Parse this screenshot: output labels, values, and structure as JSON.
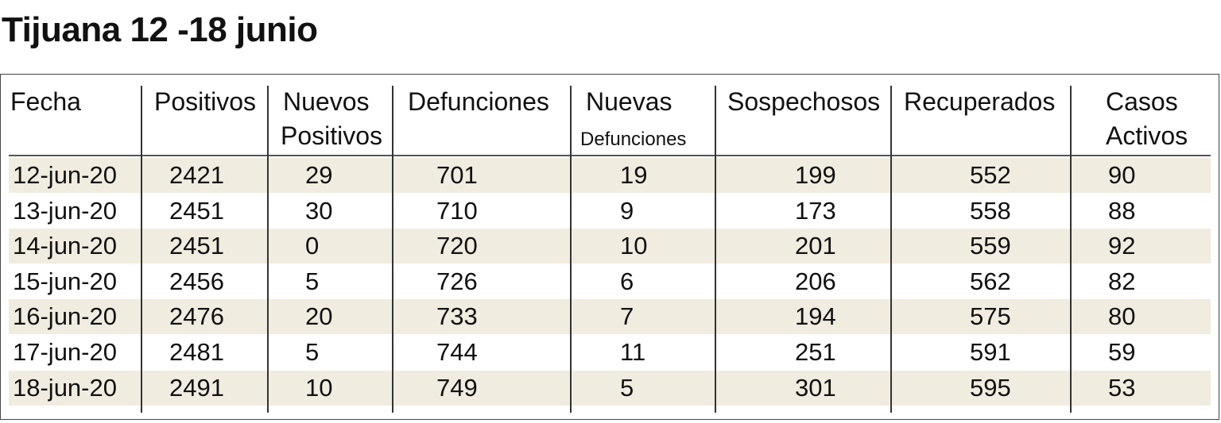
{
  "title": "Tijuana 12 -18 junio",
  "colors": {
    "row_shade": "#f1ece0",
    "rule": "#333333"
  },
  "chart_data": {
    "type": "table",
    "columns": [
      "Fecha",
      "Positivos",
      "Nuevos Positivos",
      "Defunciones",
      "Nuevas Defunciones",
      "Sospechosos",
      "Recuperados",
      "Casos Activos"
    ],
    "header": {
      "fecha": "Fecha",
      "positivos": "Positivos",
      "nuevos_positivos_1": "Nuevos",
      "nuevos_positivos_2": "Positivos",
      "defunciones": "Defunciones",
      "nuevas_defunciones_1": "Nuevas",
      "nuevas_defunciones_2": "Defunciones",
      "sospechosos": "Sospechosos",
      "recuperados": "Recuperados",
      "casos_activos_1": "Casos",
      "casos_activos_2": "Activos"
    },
    "rows": [
      [
        "12-jun-20",
        "2421",
        "29",
        "701",
        "19",
        "199",
        "552",
        "90"
      ],
      [
        "13-jun-20",
        "2451",
        "30",
        "710",
        "9",
        "173",
        "558",
        "88"
      ],
      [
        "14-jun-20",
        "2451",
        "0",
        "720",
        "10",
        "201",
        "559",
        "92"
      ],
      [
        "15-jun-20",
        "2456",
        "5",
        "726",
        "6",
        "206",
        "562",
        "82"
      ],
      [
        "16-jun-20",
        "2476",
        "20",
        "733",
        "7",
        "194",
        "575",
        "80"
      ],
      [
        "17-jun-20",
        "2481",
        "5",
        "744",
        "11",
        "251",
        "591",
        "59"
      ],
      [
        "18-jun-20",
        "2491",
        "10",
        "749",
        "5",
        "301",
        "595",
        "53"
      ]
    ]
  }
}
